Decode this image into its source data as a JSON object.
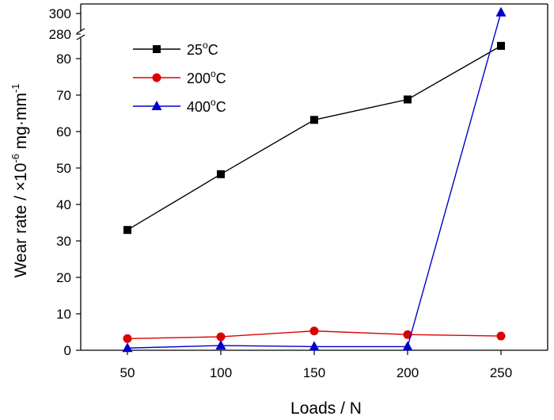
{
  "chart_data": {
    "type": "line",
    "title": "",
    "xlabel": "Loads / N",
    "ylabel": {
      "prefix": "Wear rate / ×10",
      "exponent": "-6",
      "unit": " mg·mm",
      "unit_exponent": "-1"
    },
    "x": [
      50,
      100,
      150,
      200,
      250
    ],
    "x_ticks": [
      "50",
      "100",
      "150",
      "200",
      "250"
    ],
    "y_ticks_lower": [
      "0",
      "10",
      "20",
      "30",
      "40",
      "50",
      "60",
      "70",
      "80"
    ],
    "y_ticks_upper": [
      "280",
      "300"
    ],
    "ylim_lower": [
      0,
      85
    ],
    "ylim_upper": [
      280,
      305
    ],
    "broken_axis": true,
    "grid": false,
    "legend_position": "top-left",
    "series": [
      {
        "name": "25",
        "name_sup": "o",
        "name_suffix": "C",
        "color": "#000000",
        "marker": "square",
        "values": [
          33.0,
          48.3,
          63.2,
          68.8,
          83.5
        ]
      },
      {
        "name": "200",
        "name_sup": "o",
        "name_suffix": "C",
        "color": "#dd0000",
        "marker": "circle",
        "values": [
          3.2,
          3.7,
          5.3,
          4.3,
          3.9
        ]
      },
      {
        "name": "400",
        "name_sup": "o",
        "name_suffix": "C",
        "color": "#0000cc",
        "marker": "triangle",
        "values": [
          0.6,
          1.3,
          1.0,
          1.0,
          301
        ]
      }
    ]
  }
}
